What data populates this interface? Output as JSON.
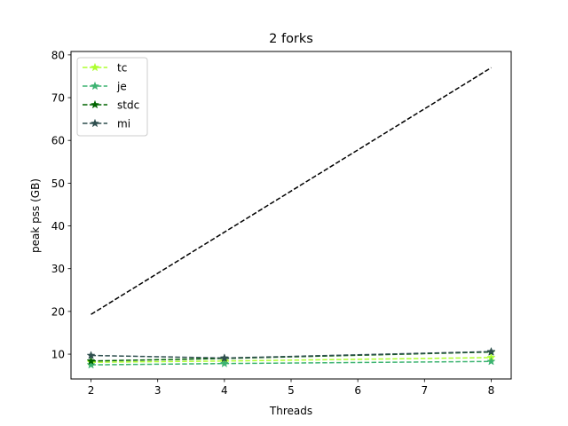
{
  "chart_data": {
    "type": "line",
    "title": "2 forks",
    "xlabel": "Threads",
    "ylabel": "peak pss (GB)",
    "xlim": [
      1.7,
      8.3
    ],
    "ylim": [
      4.2,
      80.8
    ],
    "xticks": [
      2,
      3,
      4,
      5,
      6,
      7,
      8
    ],
    "yticks": [
      10,
      20,
      30,
      40,
      50,
      60,
      70,
      80
    ],
    "grid": false,
    "legend_position": "upper-left",
    "series": [
      {
        "name": "tc",
        "x": [
          2,
          4,
          8
        ],
        "y": [
          8.1,
          8.4,
          9.2
        ],
        "color": "#adff2f",
        "linestyle": "dashed",
        "marker": "star"
      },
      {
        "name": "je",
        "x": [
          2,
          4,
          8
        ],
        "y": [
          7.5,
          7.8,
          8.3
        ],
        "color": "#3cb371",
        "linestyle": "dashed",
        "marker": "star"
      },
      {
        "name": "stdc",
        "x": [
          2,
          4,
          8
        ],
        "y": [
          8.4,
          9.0,
          10.5
        ],
        "color": "#006400",
        "linestyle": "dashed",
        "marker": "star"
      },
      {
        "name": "mi",
        "x": [
          2,
          4,
          8
        ],
        "y": [
          9.7,
          9.1,
          10.6
        ],
        "color": "#2f4f4f",
        "linestyle": "dashed",
        "marker": "star"
      },
      {
        "x": [
          2,
          8
        ],
        "y": [
          19.3,
          77.0
        ],
        "color": "#000000",
        "linestyle": "dashed",
        "marker": "none"
      }
    ]
  }
}
